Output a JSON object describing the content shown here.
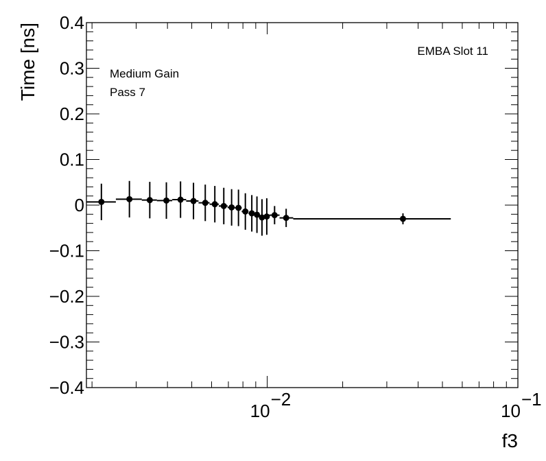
{
  "chart_data": {
    "type": "scatter",
    "title": "",
    "xlabel": "f3",
    "ylabel": "Time [ns]",
    "xscale": "log",
    "xlim": [
      0.0019,
      0.1
    ],
    "ylim": [
      -0.4,
      0.4
    ],
    "annotations": {
      "detector": "EMBA Slot 11",
      "gain": "Medium Gain",
      "pass": "Pass 7"
    },
    "y_tick_labels": [
      "0.4",
      "0.3",
      "0.2",
      "0.1",
      "0",
      "−0.1",
      "−0.2",
      "−0.3",
      "−0.4"
    ],
    "y_tick_values": [
      0.4,
      0.3,
      0.2,
      0.1,
      0,
      -0.1,
      -0.2,
      -0.3,
      -0.4
    ],
    "x_tick_values": [
      0.01,
      0.1
    ],
    "x_tick_labels": [
      {
        "base": "10",
        "exp": "−2"
      },
      {
        "base": "10",
        "exp": "−1"
      }
    ],
    "series": [
      {
        "name": "Pass 7",
        "color": "#000000",
        "points": [
          {
            "x": 0.00218,
            "y": 0.007,
            "xlo": 0.0019,
            "xhi": 0.00249,
            "err": 0.04
          },
          {
            "x": 0.00282,
            "y": 0.013,
            "xlo": 0.00249,
            "xhi": 0.00316,
            "err": 0.04
          },
          {
            "x": 0.0034,
            "y": 0.011,
            "xlo": 0.00316,
            "xhi": 0.00363,
            "err": 0.04
          },
          {
            "x": 0.00396,
            "y": 0.01,
            "xlo": 0.00363,
            "xhi": 0.00418,
            "err": 0.04
          },
          {
            "x": 0.00451,
            "y": 0.012,
            "xlo": 0.00418,
            "xhi": 0.00475,
            "err": 0.04
          },
          {
            "x": 0.00508,
            "y": 0.009,
            "xlo": 0.00475,
            "xhi": 0.00532,
            "err": 0.04
          },
          {
            "x": 0.00566,
            "y": 0.005,
            "xlo": 0.00532,
            "xhi": 0.00589,
            "err": 0.04
          },
          {
            "x": 0.00618,
            "y": 0.002,
            "xlo": 0.00589,
            "xhi": 0.00641,
            "err": 0.04
          },
          {
            "x": 0.00671,
            "y": -0.002,
            "xlo": 0.00641,
            "xhi": 0.00695,
            "err": 0.04
          },
          {
            "x": 0.00721,
            "y": -0.005,
            "xlo": 0.00695,
            "xhi": 0.00743,
            "err": 0.04
          },
          {
            "x": 0.00768,
            "y": -0.006,
            "xlo": 0.00743,
            "xhi": 0.00791,
            "err": 0.04
          },
          {
            "x": 0.00818,
            "y": -0.014,
            "xlo": 0.00791,
            "xhi": 0.00842,
            "err": 0.04
          },
          {
            "x": 0.00868,
            "y": -0.018,
            "xlo": 0.00842,
            "xhi": 0.0089,
            "err": 0.04
          },
          {
            "x": 0.0091,
            "y": -0.021,
            "xlo": 0.0089,
            "xhi": 0.00932,
            "err": 0.04
          },
          {
            "x": 0.00953,
            "y": -0.027,
            "xlo": 0.00932,
            "xhi": 0.00975,
            "err": 0.04
          },
          {
            "x": 0.00996,
            "y": -0.025,
            "xlo": 0.00975,
            "xhi": 0.0102,
            "err": 0.04
          },
          {
            "x": 0.0107,
            "y": -0.022,
            "xlo": 0.0102,
            "xhi": 0.0112,
            "err": 0.02
          },
          {
            "x": 0.0119,
            "y": -0.028,
            "xlo": 0.0112,
            "xhi": 0.0127,
            "err": 0.02
          },
          {
            "x": 0.0348,
            "y": -0.03,
            "xlo": 0.0127,
            "xhi": 0.054,
            "err": 0.012
          }
        ]
      }
    ]
  }
}
